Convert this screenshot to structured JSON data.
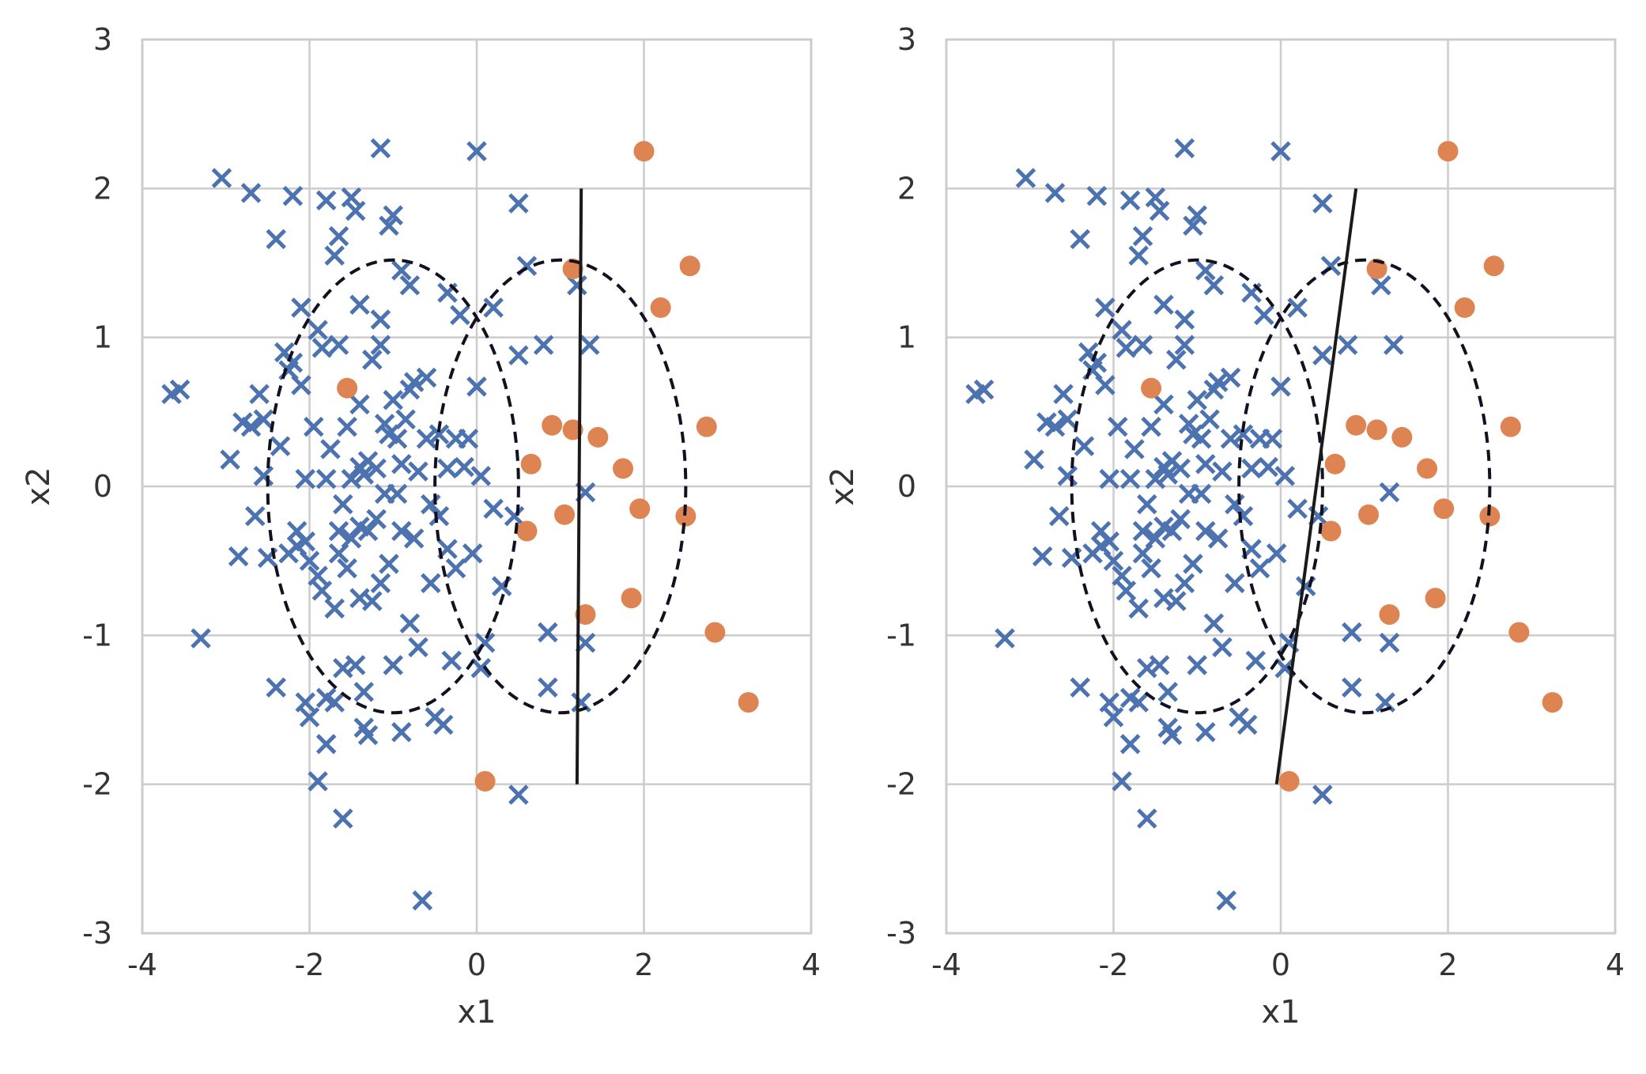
{
  "chart_data": [
    {
      "type": "scatter",
      "xlabel": "x1",
      "ylabel": "x2",
      "xlim": [
        -4,
        4
      ],
      "ylim": [
        -3,
        3
      ],
      "xticks": [
        "-4",
        "-2",
        "0",
        "2",
        "4"
      ],
      "yticks": [
        "-3",
        "-2",
        "-1",
        "0",
        "1",
        "2",
        "3"
      ],
      "grid": true,
      "colors": {
        "class0": "#4c72b0",
        "class1": "#dd8452"
      },
      "series": [
        {
          "marker": "x",
          "color": "#4c72b0",
          "points": [
            [
              -3.65,
              0.62
            ],
            [
              -3.55,
              0.65
            ],
            [
              -3.3,
              -1.02
            ],
            [
              -3.05,
              2.07
            ],
            [
              -2.95,
              0.18
            ],
            [
              -2.85,
              -0.47
            ],
            [
              -2.8,
              0.43
            ],
            [
              -2.7,
              1.97
            ],
            [
              -2.7,
              0.4
            ],
            [
              -2.65,
              -0.2
            ],
            [
              -2.6,
              0.62
            ],
            [
              -2.55,
              0.45
            ],
            [
              -2.55,
              0.07
            ],
            [
              -2.5,
              -0.48
            ],
            [
              -2.4,
              1.66
            ],
            [
              -2.4,
              -1.35
            ],
            [
              -2.35,
              0.27
            ],
            [
              -2.3,
              0.9
            ],
            [
              -2.25,
              0.78
            ],
            [
              -2.25,
              -0.45
            ],
            [
              -2.2,
              1.95
            ],
            [
              -2.2,
              0.83
            ],
            [
              -2.15,
              -0.3
            ],
            [
              -2.15,
              -0.4
            ],
            [
              -2.1,
              1.2
            ],
            [
              -2.1,
              0.68
            ],
            [
              -2.05,
              0.05
            ],
            [
              -2.05,
              -0.37
            ],
            [
              -2.05,
              -1.45
            ],
            [
              -2.0,
              -1.55
            ],
            [
              -2.0,
              -0.5
            ],
            [
              -1.95,
              0.4
            ],
            [
              -1.9,
              1.05
            ],
            [
              -1.9,
              -0.6
            ],
            [
              -1.9,
              -1.98
            ],
            [
              -1.85,
              0.93
            ],
            [
              -1.85,
              -0.7
            ],
            [
              -1.8,
              1.92
            ],
            [
              -1.8,
              0.05
            ],
            [
              -1.8,
              -1.42
            ],
            [
              -1.8,
              -1.73
            ],
            [
              -1.75,
              0.25
            ],
            [
              -1.7,
              1.55
            ],
            [
              -1.7,
              -0.82
            ],
            [
              -1.7,
              -1.45
            ],
            [
              -1.65,
              1.68
            ],
            [
              -1.65,
              0.95
            ],
            [
              -1.65,
              -0.3
            ],
            [
              -1.65,
              -0.45
            ],
            [
              -1.6,
              -0.12
            ],
            [
              -1.6,
              -1.22
            ],
            [
              -1.6,
              -2.23
            ],
            [
              -1.55,
              0.4
            ],
            [
              -1.55,
              -0.55
            ],
            [
              -1.5,
              1.94
            ],
            [
              -1.5,
              0.05
            ],
            [
              -1.5,
              -0.35
            ],
            [
              -1.45,
              1.85
            ],
            [
              -1.45,
              -1.2
            ],
            [
              -1.4,
              1.22
            ],
            [
              -1.4,
              0.55
            ],
            [
              -1.4,
              0.13
            ],
            [
              -1.4,
              -0.27
            ],
            [
              -1.4,
              -0.75
            ],
            [
              -1.35,
              0.08
            ],
            [
              -1.35,
              -1.38
            ],
            [
              -1.35,
              -1.62
            ],
            [
              -1.3,
              0.17
            ],
            [
              -1.3,
              -0.3
            ],
            [
              -1.3,
              -1.67
            ],
            [
              -1.25,
              0.85
            ],
            [
              -1.25,
              -0.77
            ],
            [
              -1.2,
              0.12
            ],
            [
              -1.2,
              -0.22
            ],
            [
              -1.15,
              2.27
            ],
            [
              -1.15,
              1.12
            ],
            [
              -1.15,
              0.95
            ],
            [
              -1.15,
              -0.65
            ],
            [
              -1.1,
              0.42
            ],
            [
              -1.1,
              -0.05
            ],
            [
              -1.05,
              1.75
            ],
            [
              -1.05,
              0.35
            ],
            [
              -1.05,
              -0.52
            ],
            [
              -1.0,
              1.82
            ],
            [
              -1.0,
              0.58
            ],
            [
              -1.0,
              -1.2
            ],
            [
              -0.95,
              0.32
            ],
            [
              -0.95,
              -0.05
            ],
            [
              -0.9,
              1.45
            ],
            [
              -0.9,
              0.15
            ],
            [
              -0.9,
              -0.3
            ],
            [
              -0.9,
              -1.65
            ],
            [
              -0.85,
              0.45
            ],
            [
              -0.8,
              1.35
            ],
            [
              -0.8,
              0.65
            ],
            [
              -0.8,
              -0.92
            ],
            [
              -0.75,
              0.7
            ],
            [
              -0.75,
              -0.35
            ],
            [
              -0.7,
              0.1
            ],
            [
              -0.7,
              -1.08
            ],
            [
              -0.65,
              -2.78
            ],
            [
              -0.6,
              0.73
            ],
            [
              -0.6,
              0.32
            ],
            [
              -0.55,
              -0.12
            ],
            [
              -0.55,
              -0.65
            ],
            [
              -0.5,
              -1.55
            ],
            [
              -0.45,
              0.35
            ],
            [
              -0.45,
              -0.2
            ],
            [
              -0.4,
              -1.6
            ],
            [
              -0.35,
              1.3
            ],
            [
              -0.35,
              0.12
            ],
            [
              -0.35,
              -0.42
            ],
            [
              -0.3,
              -1.17
            ],
            [
              -0.25,
              0.32
            ],
            [
              -0.25,
              -0.55
            ],
            [
              -0.2,
              1.15
            ],
            [
              -0.15,
              0.13
            ],
            [
              -0.1,
              0.32
            ],
            [
              -0.05,
              -0.45
            ],
            [
              0.0,
              2.25
            ],
            [
              0.0,
              0.67
            ],
            [
              0.05,
              0.07
            ],
            [
              0.05,
              -1.22
            ],
            [
              0.1,
              -1.05
            ],
            [
              0.2,
              1.2
            ],
            [
              0.2,
              -0.15
            ],
            [
              0.3,
              -0.67
            ],
            [
              0.45,
              -0.2
            ],
            [
              0.5,
              1.9
            ],
            [
              0.5,
              0.88
            ],
            [
              0.5,
              -2.07
            ],
            [
              0.6,
              1.48
            ],
            [
              0.8,
              0.95
            ],
            [
              0.85,
              -0.98
            ],
            [
              0.85,
              -1.35
            ],
            [
              1.2,
              1.35
            ],
            [
              1.3,
              -1.05
            ],
            [
              1.3,
              -0.04
            ],
            [
              1.35,
              0.95
            ],
            [
              1.25,
              -1.45
            ]
          ]
        },
        {
          "marker": "o",
          "color": "#dd8452",
          "points": [
            [
              -1.55,
              0.66
            ],
            [
              0.1,
              -1.98
            ],
            [
              0.6,
              -0.3
            ],
            [
              0.65,
              0.15
            ],
            [
              0.9,
              0.41
            ],
            [
              1.05,
              -0.19
            ],
            [
              1.15,
              1.46
            ],
            [
              1.15,
              0.38
            ],
            [
              1.3,
              -0.86
            ],
            [
              1.45,
              0.33
            ],
            [
              1.75,
              0.12
            ],
            [
              1.85,
              -0.75
            ],
            [
              1.95,
              -0.15
            ],
            [
              2.0,
              2.25
            ],
            [
              2.2,
              1.2
            ],
            [
              2.5,
              -0.2
            ],
            [
              2.55,
              1.48
            ],
            [
              2.75,
              0.4
            ],
            [
              2.85,
              -0.98
            ],
            [
              3.25,
              -1.45
            ]
          ]
        }
      ],
      "ellipses": [
        {
          "center": [
            -1.0,
            0.0
          ],
          "rx": 1.5,
          "ry": 1.52
        },
        {
          "center": [
            1.0,
            0.0
          ],
          "rx": 1.5,
          "ry": 1.52
        }
      ],
      "boundary": [
        [
          1.25,
          2.0
        ],
        [
          1.2,
          -2.0
        ]
      ]
    },
    {
      "type": "scatter",
      "xlabel": "x1",
      "ylabel": "x2",
      "xlim": [
        -4,
        4
      ],
      "ylim": [
        -3,
        3
      ],
      "xticks": [
        "-4",
        "-2",
        "0",
        "2",
        "4"
      ],
      "yticks": [
        "-3",
        "-2",
        "-1",
        "0",
        "1",
        "2",
        "3"
      ],
      "grid": true,
      "colors": {
        "class0": "#4c72b0",
        "class1": "#dd8452"
      },
      "series": [
        {
          "marker": "x",
          "color": "#4c72b0",
          "points": "same"
        },
        {
          "marker": "o",
          "color": "#dd8452",
          "points": "same"
        }
      ],
      "ellipses": [
        {
          "center": [
            -1.0,
            0.0
          ],
          "rx": 1.5,
          "ry": 1.52
        },
        {
          "center": [
            1.0,
            0.0
          ],
          "rx": 1.5,
          "ry": 1.52
        }
      ],
      "boundary": [
        [
          0.9,
          2.0
        ],
        [
          -0.05,
          -2.0
        ]
      ]
    }
  ]
}
